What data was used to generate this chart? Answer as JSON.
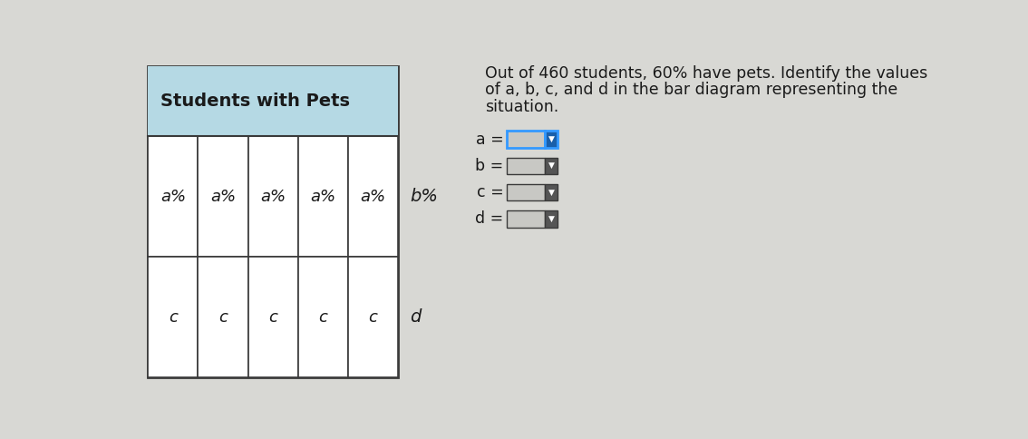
{
  "title": "Students with Pets",
  "title_bg": "#b5d9e4",
  "page_bg": "#d8d8d4",
  "text_color": "#1a1a1a",
  "border_color": "#3a3a3a",
  "cell_bg": "#ffffff",
  "n_cols": 5,
  "cell_label_row0": "a%",
  "cell_label_row1": "c",
  "outside_row0_label": "b%",
  "outside_row1_label": "d",
  "question_line1": "Out of 460 students, 60% have pets. Identify the values",
  "question_line2": "of a, b, c, and d in the bar diagram representing the",
  "question_line3": "situation.",
  "eq_labels": [
    "a =",
    "b =",
    "c =",
    "d ="
  ],
  "dropdown_active_border": "#3399ff",
  "dropdown_input_bg": "#c8c8c4",
  "dropdown_arrow_active": "#1a5faa",
  "dropdown_arrow_inactive": "#555555",
  "header_font_size": 14,
  "cell_font_size": 13,
  "question_font_size": 12.5
}
